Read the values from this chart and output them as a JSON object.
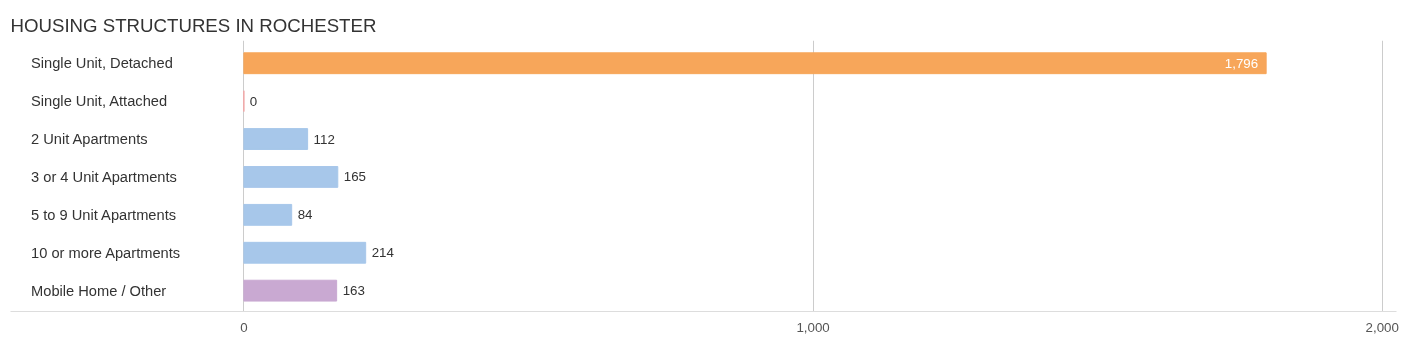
{
  "chart_data": {
    "type": "bar",
    "orientation": "horizontal",
    "title": "HOUSING STRUCTURES IN ROCHESTER",
    "categories": [
      "Single Unit, Detached",
      "Single Unit, Attached",
      "2 Unit Apartments",
      "3 or 4 Unit Apartments",
      "5 to 9 Unit Apartments",
      "10 or more Apartments",
      "Mobile Home / Other"
    ],
    "values": [
      1796,
      0,
      112,
      165,
      84,
      214,
      163
    ],
    "colors": [
      "#f7a65a",
      "#f2a7a7",
      "#a7c7ea",
      "#a7c7ea",
      "#a7c7ea",
      "#a7c7ea",
      "#c9a9d2"
    ],
    "xlim": [
      -410,
      2025
    ],
    "xticks": [
      0,
      {
        "value": 1000,
        "label": "1,000"
      },
      {
        "value": 2000,
        "label": "2,000"
      }
    ],
    "grid": "x",
    "value_labels": [
      "1,796",
      "0",
      "112",
      "165",
      "84",
      "214",
      "163"
    ]
  }
}
